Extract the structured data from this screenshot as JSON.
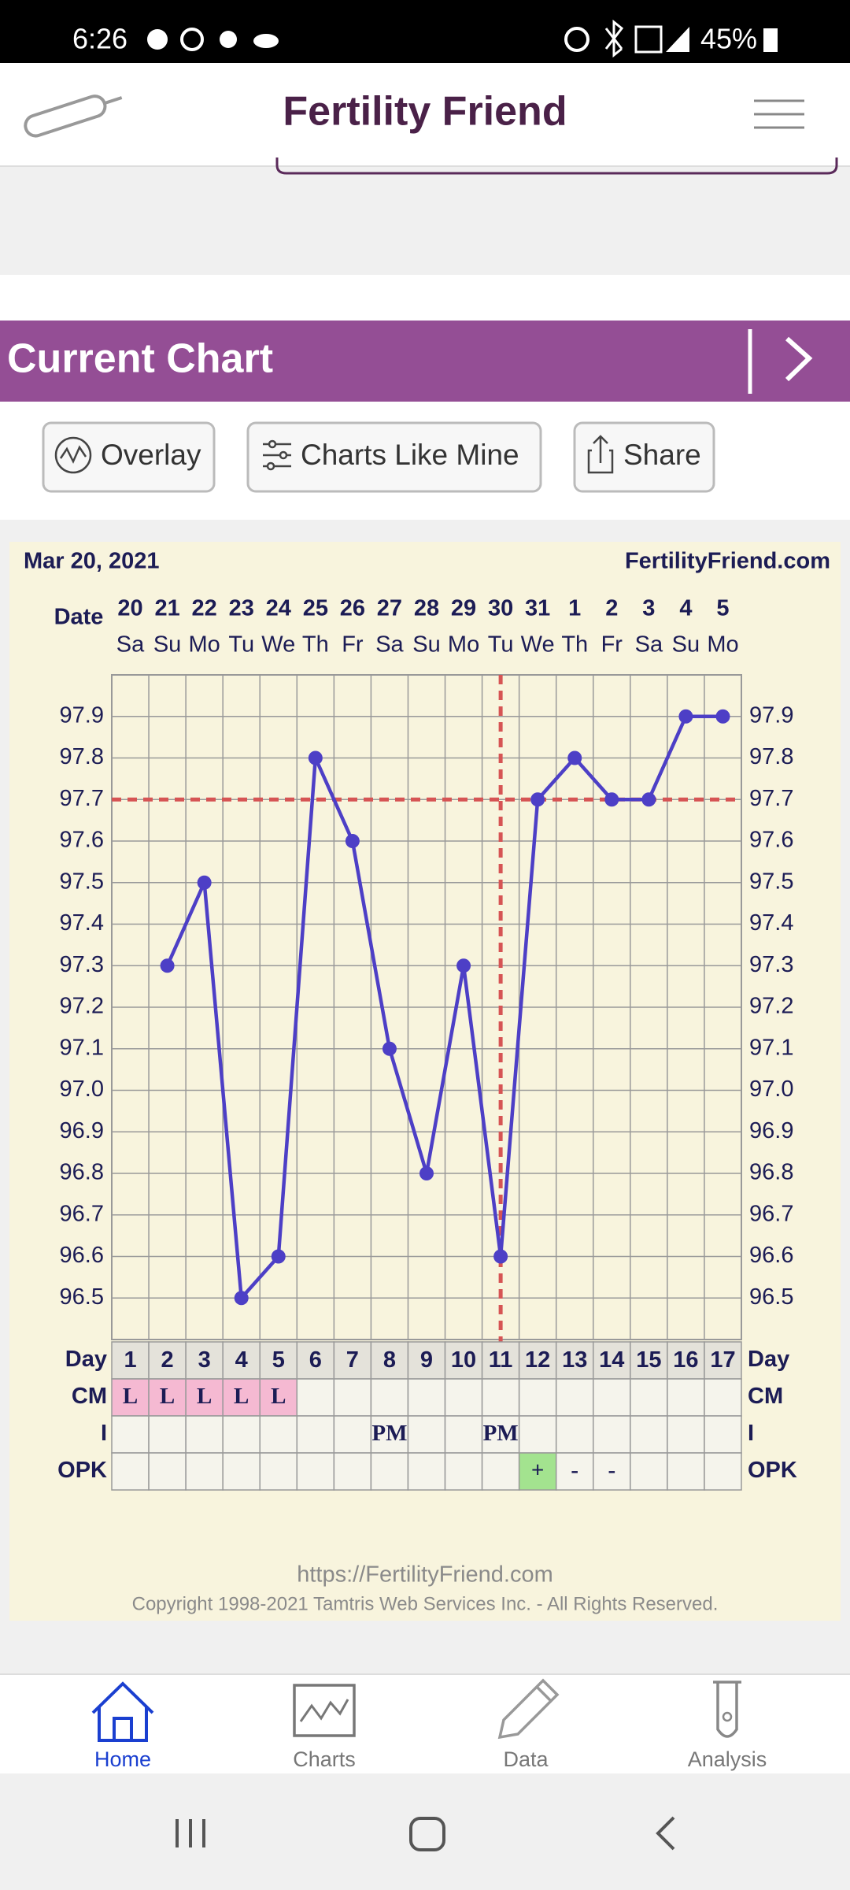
{
  "status_bar": {
    "time": "6:26",
    "battery": "45%"
  },
  "header": {
    "title": "Fertility Friend"
  },
  "banner": {
    "title": "Current Chart"
  },
  "buttons": [
    "Overlay",
    "Charts Like Mine",
    "Share"
  ],
  "chart_data": {
    "type": "line",
    "date": "Mar 20, 2021",
    "site": "FertilityFriend.com",
    "x_label": "Date",
    "categories": [
      "20",
      "21",
      "22",
      "23",
      "24",
      "25",
      "26",
      "27",
      "28",
      "29",
      "30",
      "31",
      "1",
      "2",
      "3",
      "4",
      "5"
    ],
    "weekdays": [
      "Sa",
      "Su",
      "Mo",
      "Tu",
      "We",
      "Th",
      "Fr",
      "Sa",
      "Su",
      "Mo",
      "Tu",
      "We",
      "Th",
      "Fr",
      "Sa",
      "Su",
      "Mo"
    ],
    "values": [
      null,
      97.3,
      97.5,
      96.5,
      96.6,
      97.8,
      97.6,
      97.1,
      96.8,
      97.3,
      96.6,
      97.7,
      97.8,
      97.7,
      97.7,
      97.9,
      97.9
    ],
    "color": "#4d3fc6",
    "ylim": [
      96.4,
      98.0
    ],
    "yticks": [
      96.5,
      96.6,
      96.7,
      96.8,
      96.9,
      {
        "value": 97,
        "label": "97.0"
      },
      97.1,
      97.2,
      97.3,
      97.4,
      97.5,
      97.6,
      97.7,
      97.8,
      97.9
    ],
    "grid": true,
    "coverline": 97.7,
    "ovulation_day": 11,
    "reference_color": "#d65454",
    "table": {
      "row_labels": [
        "Day",
        "CM",
        "I",
        "OPK"
      ],
      "days": [
        1,
        2,
        3,
        4,
        5,
        6,
        7,
        8,
        9,
        10,
        11,
        12,
        13,
        14,
        15,
        16,
        17
      ],
      "cm": [
        "L",
        "L",
        "L",
        "L",
        "L",
        null,
        null,
        null,
        null,
        null,
        null,
        null,
        null,
        null,
        null,
        null,
        null
      ],
      "intercourse": [
        null,
        null,
        null,
        null,
        null,
        null,
        null,
        "PM",
        null,
        null,
        "PM",
        null,
        null,
        null,
        null,
        null,
        null
      ],
      "opk": [
        null,
        null,
        null,
        null,
        null,
        null,
        null,
        null,
        null,
        null,
        null,
        "+",
        "-",
        "-",
        null,
        null,
        null
      ],
      "cm_color": "#f5b9d2",
      "opk_colors": [
        null,
        null,
        null,
        null,
        null,
        null,
        null,
        null,
        null,
        null,
        null,
        "#a3e38f",
        null,
        null,
        null,
        null,
        null
      ]
    }
  },
  "footer": {
    "url": "https://FertilityFriend.com",
    "copyright": "Copyright 1998-2021 Tamtris Web Services Inc. - All Rights Reserved."
  },
  "nav": [
    "Home",
    "Charts",
    "Data",
    "Analysis"
  ]
}
